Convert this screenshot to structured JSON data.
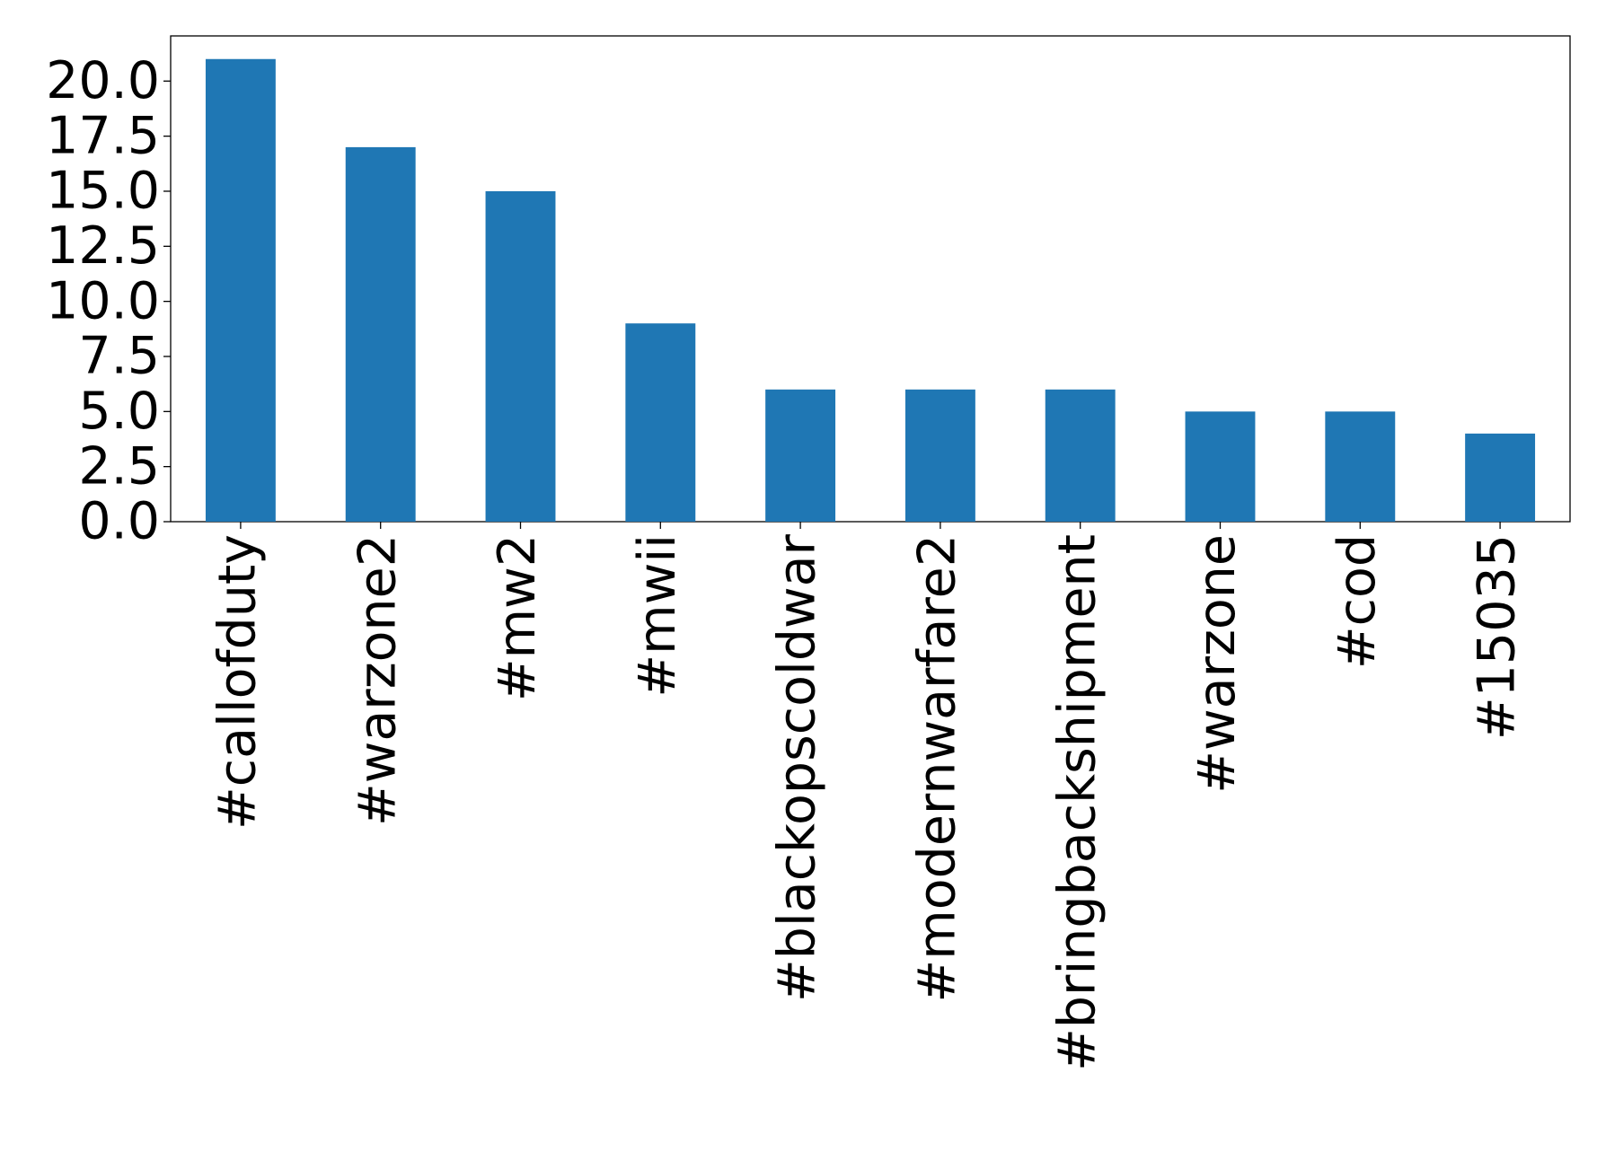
{
  "chart_data": {
    "type": "bar",
    "categories": [
      "#callofduty",
      "#warzone2",
      "#mw2",
      "#mwii",
      "#blackopscoldwar",
      "#modernwarfare2",
      "#bringbackshipment",
      "#warzone",
      "#cod",
      "#15035"
    ],
    "values": [
      21,
      17,
      15,
      9,
      6,
      6,
      6,
      5,
      5,
      4
    ],
    "color": "#1f77b4",
    "ylim": [
      0,
      22.05
    ],
    "yticks": [
      {
        "value": 0,
        "label": "0.0"
      },
      2.5,
      {
        "value": 5,
        "label": "5.0"
      },
      7.5,
      {
        "value": 10,
        "label": "10.0"
      },
      12.5,
      {
        "value": 15,
        "label": "15.0"
      },
      17.5,
      {
        "value": 20,
        "label": "20.0"
      }
    ],
    "grid": false
  }
}
